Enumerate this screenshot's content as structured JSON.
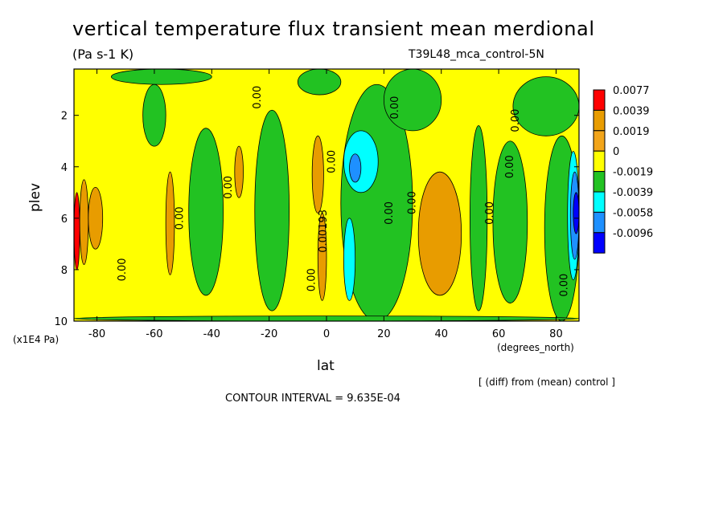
{
  "chart_data": {
    "type": "heatmap",
    "title": "vertical temperature flux transient mean merdional",
    "units": "(Pa s-1 K)",
    "dataset": "T39L48_mca_control-5N",
    "xlabel": "lat",
    "x_units": "(degrees_north)",
    "ylabel": "plev",
    "y_units": "(x1E4 Pa)",
    "xlim": [
      -88,
      88
    ],
    "ylim": [
      10,
      0.2
    ],
    "x_ticks": [
      "-80",
      "-60",
      "-40",
      "-20",
      "0",
      "20",
      "40",
      "60",
      "80"
    ],
    "x_tick_values": [
      -80,
      -60,
      -40,
      -20,
      0,
      20,
      40,
      60,
      80
    ],
    "y_ticks": [
      "2",
      "4",
      "6",
      "8",
      "10"
    ],
    "y_tick_values": [
      2,
      4,
      6,
      8,
      10
    ],
    "footnote": "[ (diff) from (mean) control ]",
    "contour_interval": "CONTOUR INTERVAL = 9.635E-04",
    "colorbar": {
      "labels": [
        "0.0077",
        "0.0039",
        "0.0019",
        "0",
        "-0.0019",
        "-0.0039",
        "-0.0058",
        "-0.0096"
      ],
      "colors": [
        "#ff0000",
        "#e89c00",
        "#f2a51a",
        "#ffff00",
        "#22c222",
        "#00ffff",
        "#1e90ff",
        "#0000ff"
      ]
    },
    "contour_labels": [
      {
        "text": "0.00",
        "lat": -70,
        "plev": 8.0
      },
      {
        "text": "0.00",
        "lat": -50,
        "plev": 6.0
      },
      {
        "text": "0.00",
        "lat": -33,
        "plev": 4.8
      },
      {
        "text": "0.00",
        "lat": -4,
        "plev": 8.4
      },
      {
        "text": "0.00",
        "lat": -23,
        "plev": 1.3
      },
      {
        "text": "0.00193",
        "lat": 0,
        "plev": 6.5
      },
      {
        "text": "0.00",
        "lat": 3,
        "plev": 3.8
      },
      {
        "text": "0.00",
        "lat": 25,
        "plev": 1.7
      },
      {
        "text": "0.00",
        "lat": 23,
        "plev": 5.8
      },
      {
        "text": "0.00",
        "lat": 31,
        "plev": 5.4
      },
      {
        "text": "0.00",
        "lat": 67,
        "plev": 2.2
      },
      {
        "text": "0.00",
        "lat": 65,
        "plev": 4.0
      },
      {
        "text": "0.00",
        "lat": 58,
        "plev": 5.8
      },
      {
        "text": "0.00",
        "lat": 84,
        "plev": 8.6
      }
    ],
    "regions": [
      {
        "level": "0.0039",
        "lat": [
          -56,
          -53
        ],
        "plev": [
          4.2,
          8.2
        ]
      },
      {
        "level": "0.0039",
        "lat": [
          -86,
          -83
        ],
        "plev": [
          4.5,
          7.8
        ]
      },
      {
        "level": "0.0039",
        "lat": [
          -83,
          -78
        ],
        "plev": [
          4.8,
          7.2
        ]
      },
      {
        "level": "0.0039",
        "lat": [
          -32,
          -29
        ],
        "plev": [
          3.2,
          5.2
        ]
      },
      {
        "level": "0.0039",
        "lat": [
          -5,
          -1
        ],
        "plev": [
          2.8,
          5.8
        ]
      },
      {
        "level": "0.0039",
        "lat": [
          -3,
          0
        ],
        "plev": [
          5.8,
          9.2
        ]
      },
      {
        "level": "0.0039",
        "lat": [
          32,
          47
        ],
        "plev": [
          4.2,
          9.0
        ]
      },
      {
        "level": "0.0077",
        "lat": [
          -88,
          -86
        ],
        "plev": [
          5.0,
          8.0
        ]
      },
      {
        "level": "-0.0019",
        "lat": [
          -75,
          -40
        ],
        "plev": [
          0.2,
          0.8
        ]
      },
      {
        "level": "-0.0019",
        "lat": [
          -64,
          -56
        ],
        "plev": [
          0.8,
          3.2
        ]
      },
      {
        "level": "-0.0019",
        "lat": [
          -48,
          -36
        ],
        "plev": [
          2.5,
          9.0
        ]
      },
      {
        "level": "-0.0019",
        "lat": [
          -25,
          -13
        ],
        "plev": [
          1.8,
          9.6
        ]
      },
      {
        "level": "-0.0019",
        "lat": [
          -10,
          5
        ],
        "plev": [
          0.2,
          1.2
        ]
      },
      {
        "level": "-0.0019",
        "lat": [
          5,
          30
        ],
        "plev": [
          0.8,
          10
        ]
      },
      {
        "level": "-0.0019",
        "lat": [
          20,
          40
        ],
        "plev": [
          0.2,
          2.6
        ]
      },
      {
        "level": "-0.0019",
        "lat": [
          50,
          56
        ],
        "plev": [
          2.4,
          9.6
        ]
      },
      {
        "level": "-0.0019",
        "lat": [
          58,
          70
        ],
        "plev": [
          3.0,
          9.3
        ]
      },
      {
        "level": "-0.0019",
        "lat": [
          65,
          88
        ],
        "plev": [
          0.5,
          2.8
        ]
      },
      {
        "level": "-0.0019",
        "lat": [
          76,
          88
        ],
        "plev": [
          2.8,
          10
        ]
      },
      {
        "level": "-0.0019",
        "lat": [
          -88,
          88
        ],
        "plev": [
          9.8,
          10
        ]
      },
      {
        "level": "-0.0039",
        "lat": [
          6,
          18
        ],
        "plev": [
          2.6,
          5.0
        ]
      },
      {
        "level": "-0.0039",
        "lat": [
          6,
          10
        ],
        "plev": [
          6.0,
          9.2
        ]
      },
      {
        "level": "-0.0039",
        "lat": [
          84,
          88
        ],
        "plev": [
          3.4,
          8.4
        ]
      },
      {
        "level": "-0.0058",
        "lat": [
          8,
          12
        ],
        "plev": [
          3.5,
          4.6
        ]
      },
      {
        "level": "-0.0058",
        "lat": [
          85,
          88
        ],
        "plev": [
          4.2,
          7.6
        ]
      },
      {
        "level": "-0.0096",
        "lat": [
          86,
          88
        ],
        "plev": [
          5.0,
          6.6
        ]
      }
    ]
  }
}
